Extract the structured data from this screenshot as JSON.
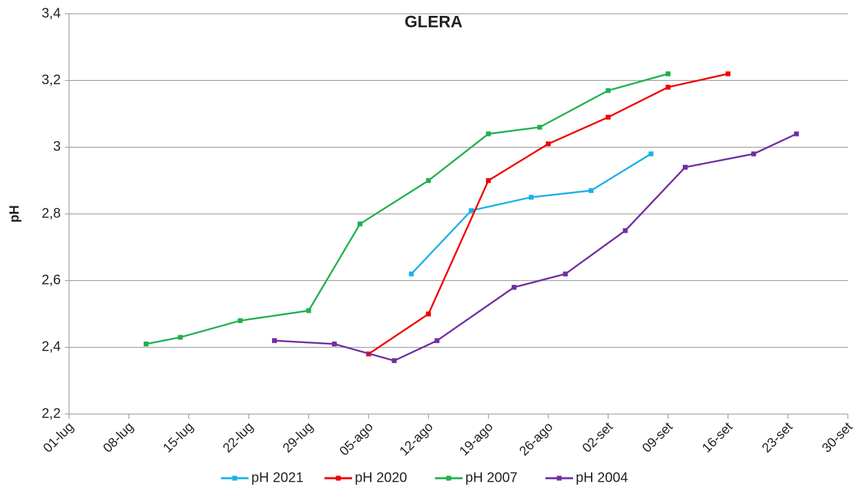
{
  "chart_data": {
    "type": "line",
    "title": "GLERA",
    "y_label": "pH",
    "xlim": [
      182,
      273
    ],
    "xticks": [
      {
        "value": 182,
        "label": "01-lug"
      },
      {
        "value": 189,
        "label": "08-lug"
      },
      {
        "value": 196,
        "label": "15-lug"
      },
      {
        "value": 203,
        "label": "22-lug"
      },
      {
        "value": 210,
        "label": "29-lug"
      },
      {
        "value": 217,
        "label": "05-ago"
      },
      {
        "value": 224,
        "label": "12-ago"
      },
      {
        "value": 231,
        "label": "19-ago"
      },
      {
        "value": 238,
        "label": "26-ago"
      },
      {
        "value": 245,
        "label": "02-set"
      },
      {
        "value": 252,
        "label": "09-set"
      },
      {
        "value": 259,
        "label": "16-set"
      },
      {
        "value": 266,
        "label": "23-set"
      },
      {
        "value": 273,
        "label": "30-set"
      }
    ],
    "ylim": [
      2.2,
      3.4
    ],
    "yticks": [
      {
        "value": 2.2,
        "label": "2,2"
      },
      {
        "value": 2.4,
        "label": "2,4"
      },
      {
        "value": 2.6,
        "label": "2,6"
      },
      {
        "value": 2.8,
        "label": "2,8"
      },
      3,
      {
        "value": 3.2,
        "label": "3,2"
      },
      {
        "value": 3.4,
        "label": "3,4"
      }
    ],
    "grid": true,
    "legend": "bottom",
    "series": [
      {
        "name": "pH 2021",
        "color": "#1cb0e8",
        "x": [
          222,
          229,
          236,
          243,
          250
        ],
        "values": [
          2.62,
          2.81,
          2.85,
          2.87,
          2.98
        ]
      },
      {
        "name": "pH 2020",
        "color": "#f00000",
        "x": [
          217,
          224,
          231,
          238,
          245,
          252,
          259
        ],
        "values": [
          2.38,
          2.5,
          2.9,
          3.01,
          3.09,
          3.18,
          3.22
        ]
      },
      {
        "name": "pH 2007",
        "color": "#22b050",
        "x": [
          191,
          195,
          202,
          210,
          216,
          224,
          231,
          237,
          245,
          252
        ],
        "values": [
          2.41,
          2.43,
          2.48,
          2.51,
          2.77,
          2.9,
          3.04,
          3.06,
          3.17,
          3.22
        ]
      },
      {
        "name": "pH 2004",
        "color": "#7030a0",
        "x": [
          206,
          213,
          220,
          225,
          234,
          240,
          247,
          254,
          262,
          267
        ],
        "values": [
          2.42,
          2.41,
          2.36,
          2.42,
          2.58,
          2.62,
          2.75,
          2.94,
          2.98,
          3.04
        ]
      }
    ]
  }
}
